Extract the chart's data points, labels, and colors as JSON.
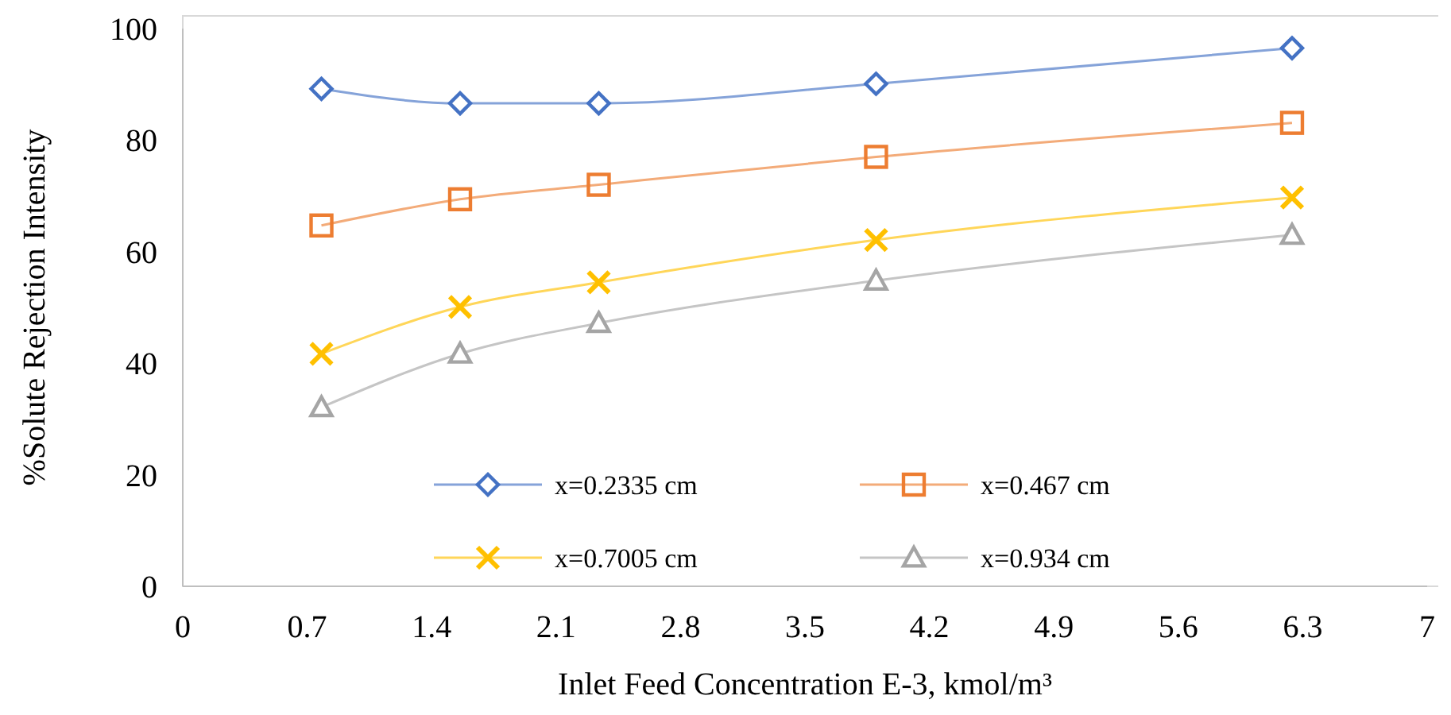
{
  "chart_data": {
    "type": "line",
    "xlabel": "Inlet Feed Concentration E-3, kmol/m³",
    "ylabel": "%Solute Rejection Intensity",
    "x": [
      0.78,
      1.56,
      2.34,
      3.9,
      6.24
    ],
    "xlim": [
      0,
      7
    ],
    "xticks": [
      0,
      0.7,
      1.4,
      2.1,
      2.8,
      3.5,
      4.2,
      4.9,
      5.6,
      6.3,
      7
    ],
    "ylim": [
      0,
      100
    ],
    "yticks": [
      0,
      20,
      40,
      60,
      80,
      100
    ],
    "grid": false,
    "legend": "bottom",
    "line_style": "solid",
    "series": [
      {
        "name": "x=0.2335 cm",
        "color": "#4472c4",
        "marker": "diamond",
        "values": [
          89.2,
          86.6,
          86.6,
          90.1,
          96.5
        ]
      },
      {
        "name": "x=0.467 cm",
        "color": "#ed7d31",
        "marker": "square",
        "values": [
          64.7,
          69.4,
          72,
          77,
          83.1
        ]
      },
      {
        "name": "x=0.7005 cm",
        "color": "#ffc000",
        "marker": "cross",
        "values": [
          41.7,
          50.1,
          54.5,
          62.1,
          69.7
        ]
      },
      {
        "name": "x=0.934 cm",
        "color": "#a5a5a5",
        "marker": "triangle",
        "values": [
          32.1,
          41.7,
          47.2,
          54.8,
          63
        ]
      }
    ]
  }
}
